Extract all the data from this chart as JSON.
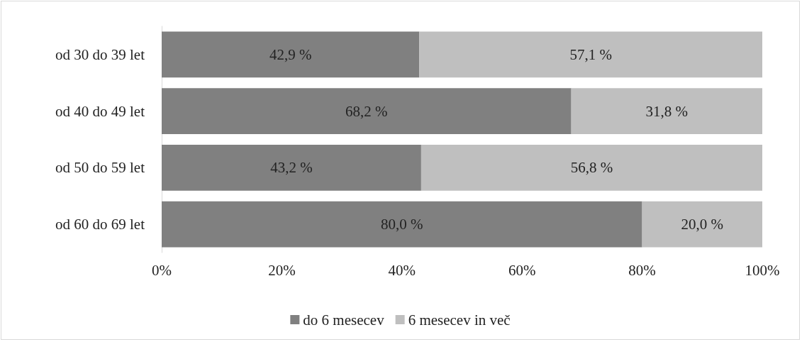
{
  "chart_data": {
    "type": "bar",
    "orientation": "horizontal",
    "stacked": true,
    "categories": [
      "od 30 do 39 let",
      "od 40 do 49 let",
      "od 50 do 59 let",
      "od 60 do 69 let"
    ],
    "series": [
      {
        "name": "do 6 mesecev",
        "color": "#808080",
        "values": [
          42.9,
          68.2,
          43.2,
          80.0
        ],
        "value_labels": [
          "42,9 %",
          "68,2 %",
          "43,2 %",
          "80,0 %"
        ]
      },
      {
        "name": "6 mesecev in več",
        "color": "#bfbfbf",
        "values": [
          57.1,
          31.8,
          56.8,
          20.0
        ],
        "value_labels": [
          "57,1 %",
          "31,8 %",
          "56,8 %",
          "20,0 %"
        ]
      }
    ],
    "xlim": [
      0,
      100
    ],
    "xticks": [
      {
        "value": 0,
        "label": "0%"
      },
      {
        "value": 20,
        "label": "20%"
      },
      {
        "value": 40,
        "label": "40%"
      },
      {
        "value": 60,
        "label": "60%"
      },
      {
        "value": 80,
        "label": "80%"
      },
      {
        "value": 100,
        "label": "100%"
      }
    ],
    "grid": false,
    "legend": "bottom"
  }
}
